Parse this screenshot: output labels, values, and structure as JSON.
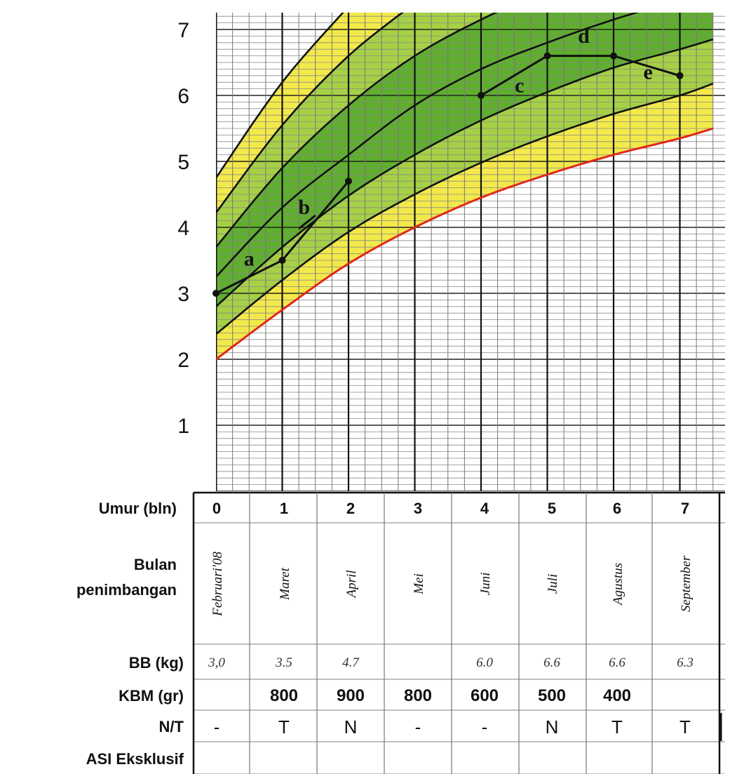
{
  "chart_data": {
    "type": "line",
    "title": "",
    "xlabel": "",
    "ylabel": "",
    "xlim": [
      0,
      7.5
    ],
    "ylim": [
      0,
      7.3
    ],
    "y_ticks": [
      "1",
      "2",
      "3",
      "4",
      "5",
      "6",
      "7"
    ],
    "grid": true,
    "zones": [
      {
        "name": "yellow",
        "color": "#f3e94a"
      },
      {
        "name": "green",
        "color": "#5fae2e"
      },
      {
        "name": "light-green",
        "color": "#a6d045"
      },
      {
        "name": "red-line",
        "color": "#e0281b"
      }
    ],
    "reference_curves": [
      {
        "color": "#e0281b",
        "points": [
          [
            0,
            2.0
          ],
          [
            1,
            2.75
          ],
          [
            2,
            3.45
          ],
          [
            3,
            4.0
          ],
          [
            4,
            4.45
          ],
          [
            5,
            4.8
          ],
          [
            6,
            5.1
          ],
          [
            7,
            5.35
          ],
          [
            7.5,
            5.5
          ]
        ]
      },
      {
        "color": "#111111",
        "points": [
          [
            0,
            2.38
          ],
          [
            1,
            3.2
          ],
          [
            2,
            3.93
          ],
          [
            3,
            4.5
          ],
          [
            4,
            4.98
          ],
          [
            5,
            5.38
          ],
          [
            6,
            5.72
          ],
          [
            7,
            6.0
          ],
          [
            7.5,
            6.18
          ]
        ]
      },
      {
        "color": "#111111",
        "points": [
          [
            0,
            2.8
          ],
          [
            1,
            3.7
          ],
          [
            2,
            4.48
          ],
          [
            3,
            5.1
          ],
          [
            4,
            5.62
          ],
          [
            5,
            6.05
          ],
          [
            6,
            6.42
          ],
          [
            7,
            6.7
          ],
          [
            7.5,
            6.85
          ]
        ]
      },
      {
        "color": "#111111",
        "points": [
          [
            0,
            3.25
          ],
          [
            1,
            4.3
          ],
          [
            2,
            5.1
          ],
          [
            3,
            5.85
          ],
          [
            4,
            6.4
          ],
          [
            5,
            6.8
          ],
          [
            6,
            7.15
          ],
          [
            7,
            7.45
          ],
          [
            7.5,
            7.6
          ]
        ]
      },
      {
        "color": "#111111",
        "points": [
          [
            0,
            3.7
          ],
          [
            1,
            4.9
          ],
          [
            2,
            5.85
          ],
          [
            3,
            6.6
          ],
          [
            4,
            7.15
          ],
          [
            5,
            7.6
          ]
        ]
      },
      {
        "color": "#111111",
        "points": [
          [
            0,
            4.22
          ],
          [
            1,
            5.55
          ],
          [
            2,
            6.6
          ],
          [
            3,
            7.4
          ]
        ]
      },
      {
        "color": "#111111",
        "points": [
          [
            0,
            4.75
          ],
          [
            1,
            6.2
          ],
          [
            2,
            7.35
          ]
        ]
      }
    ],
    "series": [
      {
        "points": [
          [
            0,
            3.0
          ],
          [
            1,
            3.5
          ],
          [
            2,
            4.7
          ]
        ]
      },
      {
        "points": [
          [
            4,
            6.0
          ],
          [
            5,
            6.6
          ],
          [
            6,
            6.6
          ],
          [
            7,
            6.3
          ]
        ]
      }
    ],
    "segment_labels": [
      {
        "text": "a",
        "x": 0.5,
        "y": 3.42
      },
      {
        "text": "b",
        "x": 1.33,
        "y": 4.2
      },
      {
        "text": "c",
        "x": 4.58,
        "y": 6.05
      },
      {
        "text": "d",
        "x": 5.55,
        "y": 6.8
      },
      {
        "text": "e",
        "x": 6.52,
        "y": 6.25
      }
    ]
  },
  "table": {
    "row_labels": {
      "age": "Umur (bln)",
      "month_line1": "Bulan",
      "month_line2": "penimbangan",
      "weight": "BB (kg)",
      "kbm": "KBM (gr)",
      "nt": "N/T",
      "asi": "ASI Eksklusif"
    },
    "ages": [
      "0",
      "1",
      "2",
      "3",
      "4",
      "5",
      "6",
      "7"
    ],
    "months": [
      "Februari'08",
      "Maret",
      "April",
      "Mei",
      "Juni",
      "Juli",
      "Agustus",
      "September"
    ],
    "weights": [
      "3,0",
      "3.5",
      "4.7",
      "",
      "6.0",
      "6.6",
      "6.6",
      "6.3"
    ],
    "kbm": [
      "",
      "800",
      "900",
      "800",
      "600",
      "500",
      "400",
      ""
    ],
    "nt": [
      "-",
      "T",
      "N",
      "-",
      "-",
      "N",
      "T",
      "T"
    ],
    "asi": [
      "",
      "",
      "",
      "",
      "",
      "",
      "",
      ""
    ]
  }
}
